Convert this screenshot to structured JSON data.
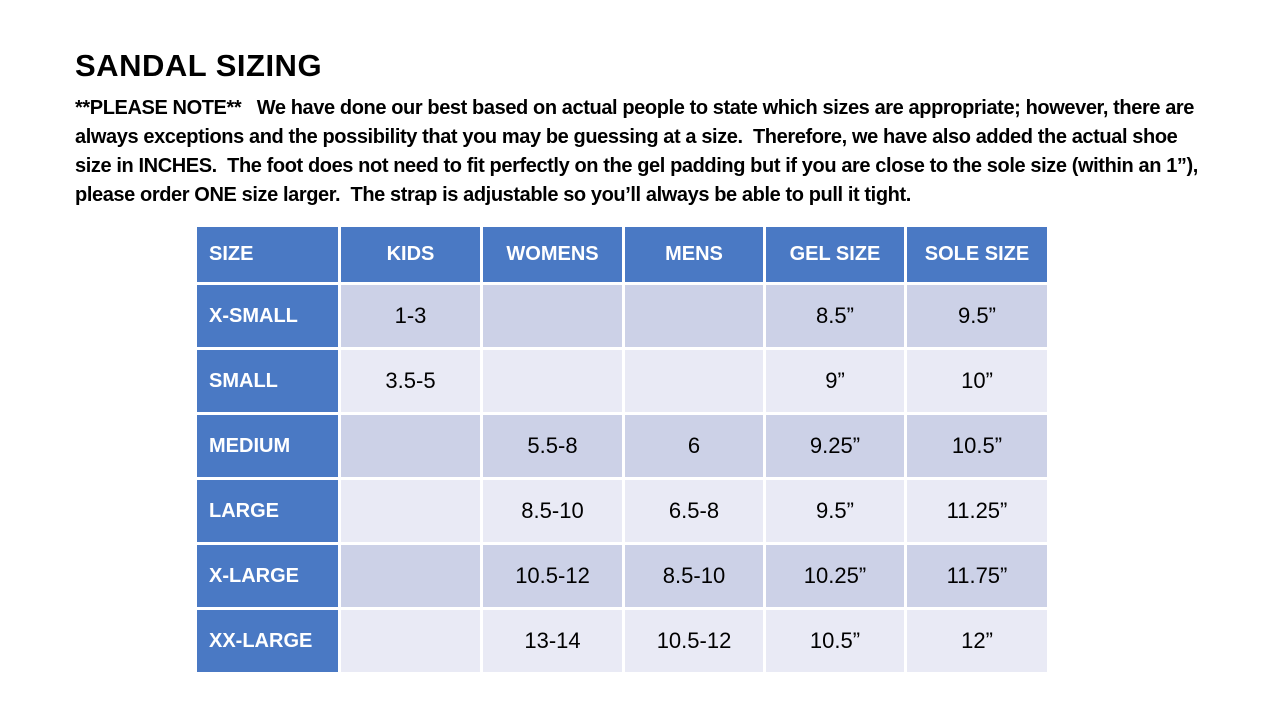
{
  "page_title": "SANDAL SIZING",
  "note": {
    "lines": [
      "**PLEASE NOTE**   We have done our best based on actual people to state which sizes are appropriate; however, there are",
      "always exceptions and the possibility that you may be guessing at a size.  Therefore, we have also added the actual shoe",
      "size in INCHES.  The foot does not need to fit perfectly on the gel padding but if you are close to the sole size (within an 1”),",
      "please order ONE size larger.  The strap is adjustable so you’ll always be able to pull it tight."
    ]
  },
  "sizing_table": {
    "headers": [
      "SIZE",
      "KIDS",
      "WOMENS",
      "MENS",
      "GEL SIZE",
      "SOLE SIZE"
    ],
    "rows": [
      {
        "size": "X-SMALL",
        "kids": "1-3",
        "womens": "",
        "mens": "",
        "gel": "8.5”",
        "sole": "9.5”"
      },
      {
        "size": "SMALL",
        "kids": "3.5-5",
        "womens": "",
        "mens": "",
        "gel": "9”",
        "sole": "10”"
      },
      {
        "size": "MEDIUM",
        "kids": "",
        "womens": "5.5-8",
        "mens": "6",
        "gel": "9.25”",
        "sole": "10.5”"
      },
      {
        "size": "LARGE",
        "kids": "",
        "womens": "8.5-10",
        "mens": "6.5-8",
        "gel": "9.5”",
        "sole": "11.25”"
      },
      {
        "size": "X-LARGE",
        "kids": "",
        "womens": "10.5-12",
        "mens": "8.5-10",
        "gel": "10.25”",
        "sole": "11.75”"
      },
      {
        "size": "XX-LARGE",
        "kids": "",
        "womens": "13-14",
        "mens": "10.5-12",
        "gel": "10.5”",
        "sole": "12”"
      }
    ]
  },
  "colors": {
    "header_blue": "#4a79c4",
    "row_band_dark": "#ccd1e7",
    "row_band_light": "#e9eaf5",
    "header_text": "#ffffff",
    "body_text": "#000000"
  }
}
